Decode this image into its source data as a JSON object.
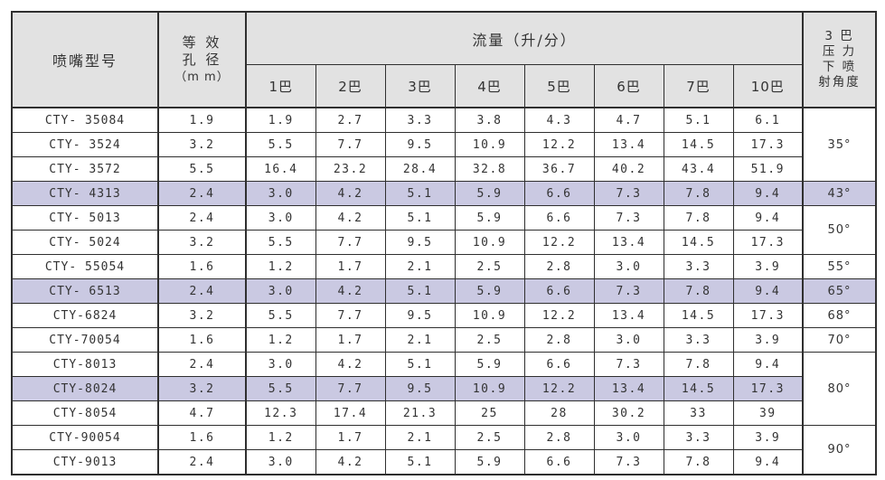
{
  "colors": {
    "header_bg": "#e2e2e2",
    "highlight_bg": "#cac9e2",
    "border": "#2f2f2f",
    "text": "#333333"
  },
  "table": {
    "header": {
      "model": "喷嘴型号",
      "aperture_lines": [
        "等 效",
        "孔 径",
        "（m m）"
      ],
      "flow": "流量（升/分）",
      "pressure_columns": [
        "1巴",
        "2巴",
        "3巴",
        "4巴",
        "5巴",
        "6巴",
        "7巴",
        "10巴"
      ],
      "angle_lines": [
        "3 巴",
        "压 力",
        "下 喷",
        "射角度"
      ]
    },
    "rows": [
      {
        "model": "CTY- 35084",
        "aperture": "1.9",
        "flows": [
          "1.9",
          "2.7",
          "3.3",
          "3.8",
          "4.3",
          "4.7",
          "5.1",
          "6.1"
        ],
        "highlight": false,
        "angle": {
          "label": "35°",
          "rowspan": 3
        }
      },
      {
        "model": "CTY- 3524",
        "aperture": "3.2",
        "flows": [
          "5.5",
          "7.7",
          "9.5",
          "10.9",
          "12.2",
          "13.4",
          "14.5",
          "17.3"
        ],
        "highlight": false
      },
      {
        "model": "CTY- 3572",
        "aperture": "5.5",
        "flows": [
          "16.4",
          "23.2",
          "28.4",
          "32.8",
          "36.7",
          "40.2",
          "43.4",
          "51.9"
        ],
        "highlight": false
      },
      {
        "model": "CTY- 4313",
        "aperture": "2.4",
        "flows": [
          "3.0",
          "4.2",
          "5.1",
          "5.9",
          "6.6",
          "7.3",
          "7.8",
          "9.4"
        ],
        "highlight": true,
        "angle": {
          "label": "43°",
          "rowspan": 1
        }
      },
      {
        "model": "CTY- 5013",
        "aperture": "2.4",
        "flows": [
          "3.0",
          "4.2",
          "5.1",
          "5.9",
          "6.6",
          "7.3",
          "7.8",
          "9.4"
        ],
        "highlight": false,
        "angle": {
          "label": "50°",
          "rowspan": 2
        }
      },
      {
        "model": "CTY- 5024",
        "aperture": "3.2",
        "flows": [
          "5.5",
          "7.7",
          "9.5",
          "10.9",
          "12.2",
          "13.4",
          "14.5",
          "17.3"
        ],
        "highlight": false
      },
      {
        "model": "CTY- 55054",
        "aperture": "1.6",
        "flows": [
          "1.2",
          "1.7",
          "2.1",
          "2.5",
          "2.8",
          "3.0",
          "3.3",
          "3.9"
        ],
        "highlight": false,
        "angle": {
          "label": "55°",
          "rowspan": 1
        }
      },
      {
        "model": "CTY- 6513",
        "aperture": "2.4",
        "flows": [
          "3.0",
          "4.2",
          "5.1",
          "5.9",
          "6.6",
          "7.3",
          "7.8",
          "9.4"
        ],
        "highlight": true,
        "angle": {
          "label": "65°",
          "rowspan": 1
        }
      },
      {
        "model": "CTY-6824",
        "aperture": "3.2",
        "flows": [
          "5.5",
          "7.7",
          "9.5",
          "10.9",
          "12.2",
          "13.4",
          "14.5",
          "17.3"
        ],
        "highlight": false,
        "angle": {
          "label": "68°",
          "rowspan": 1
        }
      },
      {
        "model": "CTY-70054",
        "aperture": "1.6",
        "flows": [
          "1.2",
          "1.7",
          "2.1",
          "2.5",
          "2.8",
          "3.0",
          "3.3",
          "3.9"
        ],
        "highlight": false,
        "angle": {
          "label": "70°",
          "rowspan": 1
        }
      },
      {
        "model": "CTY-8013",
        "aperture": "2.4",
        "flows": [
          "3.0",
          "4.2",
          "5.1",
          "5.9",
          "6.6",
          "7.3",
          "7.8",
          "9.4"
        ],
        "highlight": false,
        "angle": {
          "label": "80°",
          "rowspan": 3
        }
      },
      {
        "model": "CTY-8024",
        "aperture": "3.2",
        "flows": [
          "5.5",
          "7.7",
          "9.5",
          "10.9",
          "12.2",
          "13.4",
          "14.5",
          "17.3"
        ],
        "highlight": true
      },
      {
        "model": "CTY-8054",
        "aperture": "4.7",
        "flows": [
          "12.3",
          "17.4",
          "21.3",
          "25",
          "28",
          "30.2",
          "33",
          "39"
        ],
        "highlight": false
      },
      {
        "model": "CTY-90054",
        "aperture": "1.6",
        "flows": [
          "1.2",
          "1.7",
          "2.1",
          "2.5",
          "2.8",
          "3.0",
          "3.3",
          "3.9"
        ],
        "highlight": false,
        "angle": {
          "label": "90°",
          "rowspan": 2
        }
      },
      {
        "model": "CTY-9013",
        "aperture": "2.4",
        "flows": [
          "3.0",
          "4.2",
          "5.1",
          "5.9",
          "6.6",
          "7.3",
          "7.8",
          "9.4"
        ],
        "highlight": false
      }
    ]
  }
}
